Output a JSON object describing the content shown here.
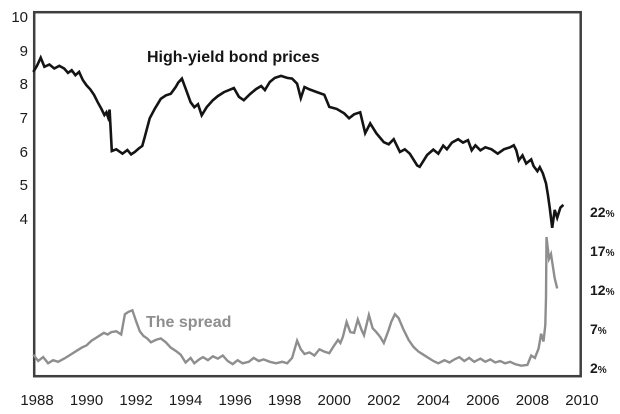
{
  "chart_data": {
    "type": "line",
    "title": "",
    "grid": false,
    "background_color": "#ffffff",
    "plot_border_color": "#3f3f3f",
    "x_axis": {
      "tick_labels": [
        "1988",
        "1990",
        "1992",
        "1994",
        "1996",
        "1998",
        "2000",
        "2002",
        "2004",
        "2006",
        "2008",
        "2010"
      ],
      "tick_values": [
        1988,
        1990,
        1992,
        1994,
        1996,
        1998,
        2000,
        2002,
        2004,
        2006,
        2008,
        2010
      ],
      "range": [
        1987.85,
        2010.6
      ]
    },
    "left_y_axis": {
      "tick_labels": [
        "10",
        "9",
        "8",
        "7",
        "6",
        "5",
        "4"
      ],
      "tick_values": [
        10,
        9,
        8,
        7,
        6,
        5,
        4
      ],
      "range": [
        3.3,
        10.2
      ],
      "applies_to": "High-yield bond prices"
    },
    "right_y_axis": {
      "tick_labels": [
        "22",
        "17",
        "12",
        "7",
        "2"
      ],
      "tick_values": [
        22,
        17,
        12,
        7,
        2
      ],
      "suffix": "%",
      "range": [
        1.0,
        22.5
      ],
      "applies_to": "The spread"
    },
    "series": [
      {
        "name": "High-yield bond prices",
        "axis": "left",
        "color": "#141414",
        "stroke_width": 2.6,
        "points": [
          [
            1987.85,
            8.4
          ],
          [
            1988.0,
            8.58
          ],
          [
            1988.15,
            8.82
          ],
          [
            1988.3,
            8.55
          ],
          [
            1988.5,
            8.62
          ],
          [
            1988.7,
            8.5
          ],
          [
            1988.9,
            8.58
          ],
          [
            1989.1,
            8.5
          ],
          [
            1989.25,
            8.37
          ],
          [
            1989.4,
            8.45
          ],
          [
            1989.55,
            8.3
          ],
          [
            1989.7,
            8.4
          ],
          [
            1989.85,
            8.16
          ],
          [
            1990.0,
            8.0
          ],
          [
            1990.15,
            7.88
          ],
          [
            1990.3,
            7.72
          ],
          [
            1990.45,
            7.5
          ],
          [
            1990.6,
            7.3
          ],
          [
            1990.72,
            7.12
          ],
          [
            1990.8,
            7.2
          ],
          [
            1990.87,
            7.05
          ],
          [
            1990.93,
            7.28
          ],
          [
            1991.02,
            6.05
          ],
          [
            1991.2,
            6.1
          ],
          [
            1991.45,
            5.97
          ],
          [
            1991.65,
            6.08
          ],
          [
            1991.8,
            5.95
          ],
          [
            1991.95,
            6.02
          ],
          [
            1992.1,
            6.12
          ],
          [
            1992.25,
            6.2
          ],
          [
            1992.35,
            6.46
          ],
          [
            1992.55,
            7.02
          ],
          [
            1992.75,
            7.3
          ],
          [
            1993.0,
            7.6
          ],
          [
            1993.2,
            7.7
          ],
          [
            1993.4,
            7.75
          ],
          [
            1993.6,
            7.95
          ],
          [
            1993.7,
            8.08
          ],
          [
            1993.85,
            8.2
          ],
          [
            1994.05,
            7.8
          ],
          [
            1994.2,
            7.5
          ],
          [
            1994.35,
            7.35
          ],
          [
            1994.5,
            7.44
          ],
          [
            1994.65,
            7.11
          ],
          [
            1994.85,
            7.35
          ],
          [
            1995.1,
            7.56
          ],
          [
            1995.3,
            7.68
          ],
          [
            1995.55,
            7.8
          ],
          [
            1995.75,
            7.86
          ],
          [
            1995.95,
            7.92
          ],
          [
            1996.15,
            7.66
          ],
          [
            1996.35,
            7.56
          ],
          [
            1996.6,
            7.74
          ],
          [
            1996.85,
            7.89
          ],
          [
            1997.05,
            7.98
          ],
          [
            1997.2,
            7.86
          ],
          [
            1997.4,
            8.1
          ],
          [
            1997.6,
            8.22
          ],
          [
            1997.85,
            8.28
          ],
          [
            1998.1,
            8.22
          ],
          [
            1998.3,
            8.2
          ],
          [
            1998.5,
            8.05
          ],
          [
            1998.65,
            7.62
          ],
          [
            1998.8,
            7.95
          ],
          [
            1999.0,
            7.88
          ],
          [
            1999.3,
            7.8
          ],
          [
            1999.6,
            7.72
          ],
          [
            1999.8,
            7.36
          ],
          [
            2000.1,
            7.3
          ],
          [
            2000.4,
            7.17
          ],
          [
            2000.6,
            7.02
          ],
          [
            2000.8,
            7.14
          ],
          [
            2001.05,
            7.2
          ],
          [
            2001.25,
            6.58
          ],
          [
            2001.45,
            6.87
          ],
          [
            2001.7,
            6.58
          ],
          [
            2002.0,
            6.31
          ],
          [
            2002.2,
            6.25
          ],
          [
            2002.4,
            6.4
          ],
          [
            2002.65,
            6.02
          ],
          [
            2002.85,
            6.1
          ],
          [
            2003.05,
            5.97
          ],
          [
            2003.35,
            5.62
          ],
          [
            2003.45,
            5.58
          ],
          [
            2003.75,
            5.93
          ],
          [
            2004.0,
            6.09
          ],
          [
            2004.2,
            5.97
          ],
          [
            2004.4,
            6.21
          ],
          [
            2004.55,
            6.1
          ],
          [
            2004.75,
            6.3
          ],
          [
            2005.0,
            6.4
          ],
          [
            2005.2,
            6.3
          ],
          [
            2005.4,
            6.37
          ],
          [
            2005.55,
            6.07
          ],
          [
            2005.7,
            6.22
          ],
          [
            2005.9,
            6.07
          ],
          [
            2006.1,
            6.16
          ],
          [
            2006.35,
            6.1
          ],
          [
            2006.6,
            5.97
          ],
          [
            2006.85,
            6.1
          ],
          [
            2007.1,
            6.16
          ],
          [
            2007.25,
            6.22
          ],
          [
            2007.35,
            6.07
          ],
          [
            2007.45,
            5.77
          ],
          [
            2007.6,
            5.92
          ],
          [
            2007.75,
            5.68
          ],
          [
            2007.95,
            5.8
          ],
          [
            2008.05,
            5.6
          ],
          [
            2008.2,
            5.45
          ],
          [
            2008.3,
            5.57
          ],
          [
            2008.42,
            5.39
          ],
          [
            2008.55,
            5.09
          ],
          [
            2008.63,
            4.73
          ],
          [
            2008.7,
            4.37
          ],
          [
            2008.8,
            3.77
          ],
          [
            2008.9,
            4.3
          ],
          [
            2009.0,
            4.07
          ],
          [
            2009.13,
            4.37
          ],
          [
            2009.25,
            4.45
          ]
        ]
      },
      {
        "name": "The spread",
        "axis": "right",
        "color": "#8e8e8e",
        "stroke_width": 2.4,
        "points": [
          [
            1987.85,
            3.7
          ],
          [
            1988.05,
            2.9
          ],
          [
            1988.25,
            3.4
          ],
          [
            1988.45,
            2.6
          ],
          [
            1988.65,
            3.0
          ],
          [
            1988.85,
            2.8
          ],
          [
            1989.1,
            3.2
          ],
          [
            1989.3,
            3.6
          ],
          [
            1989.6,
            4.2
          ],
          [
            1989.8,
            4.6
          ],
          [
            1990.0,
            4.9
          ],
          [
            1990.2,
            5.5
          ],
          [
            1990.4,
            5.9
          ],
          [
            1990.55,
            6.2
          ],
          [
            1990.7,
            6.5
          ],
          [
            1990.85,
            6.3
          ],
          [
            1991.0,
            6.6
          ],
          [
            1991.2,
            6.7
          ],
          [
            1991.4,
            6.3
          ],
          [
            1991.55,
            8.9
          ],
          [
            1991.7,
            9.2
          ],
          [
            1991.85,
            9.4
          ],
          [
            1992.0,
            8.0
          ],
          [
            1992.15,
            6.7
          ],
          [
            1992.3,
            6.1
          ],
          [
            1992.45,
            5.8
          ],
          [
            1992.6,
            5.3
          ],
          [
            1992.8,
            5.6
          ],
          [
            1993.0,
            5.8
          ],
          [
            1993.2,
            5.3
          ],
          [
            1993.4,
            4.6
          ],
          [
            1993.6,
            4.2
          ],
          [
            1993.8,
            3.7
          ],
          [
            1994.0,
            2.7
          ],
          [
            1994.2,
            3.3
          ],
          [
            1994.35,
            2.6
          ],
          [
            1994.55,
            3.1
          ],
          [
            1994.7,
            3.4
          ],
          [
            1994.9,
            3.0
          ],
          [
            1995.1,
            3.5
          ],
          [
            1995.3,
            3.2
          ],
          [
            1995.5,
            3.6
          ],
          [
            1995.7,
            2.9
          ],
          [
            1995.9,
            2.5
          ],
          [
            1996.1,
            3.0
          ],
          [
            1996.3,
            2.6
          ],
          [
            1996.55,
            2.8
          ],
          [
            1996.75,
            3.3
          ],
          [
            1996.95,
            2.9
          ],
          [
            1997.15,
            3.1
          ],
          [
            1997.4,
            2.8
          ],
          [
            1997.65,
            2.6
          ],
          [
            1997.9,
            2.8
          ],
          [
            1998.1,
            2.6
          ],
          [
            1998.3,
            3.3
          ],
          [
            1998.5,
            5.5
          ],
          [
            1998.65,
            4.4
          ],
          [
            1998.8,
            3.8
          ],
          [
            1999.0,
            4.0
          ],
          [
            1999.2,
            3.6
          ],
          [
            1999.4,
            4.4
          ],
          [
            1999.6,
            4.1
          ],
          [
            1999.8,
            3.9
          ],
          [
            2000.0,
            4.9
          ],
          [
            2000.15,
            5.6
          ],
          [
            2000.25,
            5.2
          ],
          [
            2000.35,
            6.0
          ],
          [
            2000.5,
            7.9
          ],
          [
            2000.65,
            6.6
          ],
          [
            2000.8,
            6.5
          ],
          [
            2000.95,
            8.2
          ],
          [
            2001.1,
            6.9
          ],
          [
            2001.2,
            6.2
          ],
          [
            2001.4,
            8.8
          ],
          [
            2001.55,
            7.1
          ],
          [
            2001.7,
            6.6
          ],
          [
            2001.85,
            6.0
          ],
          [
            2002.0,
            5.2
          ],
          [
            2002.2,
            6.9
          ],
          [
            2002.3,
            7.9
          ],
          [
            2002.45,
            8.9
          ],
          [
            2002.6,
            8.4
          ],
          [
            2002.8,
            6.9
          ],
          [
            2003.0,
            5.6
          ],
          [
            2003.2,
            4.7
          ],
          [
            2003.4,
            4.1
          ],
          [
            2003.6,
            3.7
          ],
          [
            2003.8,
            3.3
          ],
          [
            2004.0,
            2.9
          ],
          [
            2004.2,
            2.6
          ],
          [
            2004.45,
            3.0
          ],
          [
            2004.65,
            2.7
          ],
          [
            2004.85,
            3.1
          ],
          [
            2005.05,
            3.4
          ],
          [
            2005.25,
            2.9
          ],
          [
            2005.45,
            3.3
          ],
          [
            2005.65,
            2.8
          ],
          [
            2005.9,
            3.2
          ],
          [
            2006.1,
            2.8
          ],
          [
            2006.3,
            3.1
          ],
          [
            2006.5,
            2.7
          ],
          [
            2006.7,
            2.9
          ],
          [
            2006.9,
            2.6
          ],
          [
            2007.1,
            2.8
          ],
          [
            2007.3,
            2.5
          ],
          [
            2007.55,
            2.3
          ],
          [
            2007.8,
            2.4
          ],
          [
            2007.95,
            3.6
          ],
          [
            2008.1,
            3.3
          ],
          [
            2008.25,
            4.5
          ],
          [
            2008.35,
            6.4
          ],
          [
            2008.45,
            5.4
          ],
          [
            2008.52,
            7.5
          ],
          [
            2008.55,
            11.0
          ],
          [
            2008.57,
            18.8
          ],
          [
            2008.67,
            16.0
          ],
          [
            2008.75,
            16.6
          ],
          [
            2008.9,
            13.5
          ],
          [
            2009.0,
            12.2
          ]
        ]
      }
    ]
  }
}
